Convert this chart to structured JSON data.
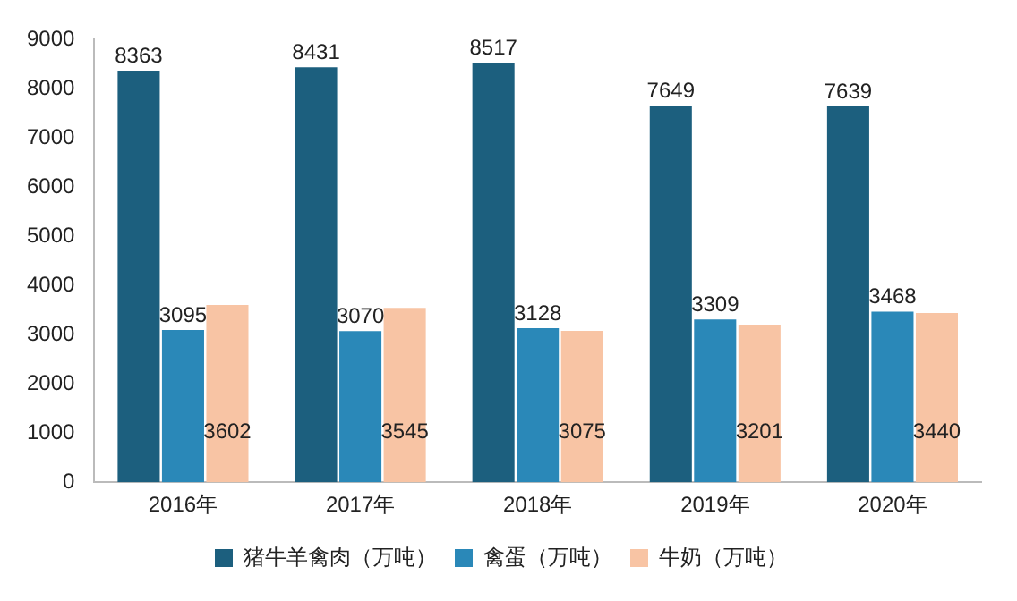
{
  "chart_data": {
    "type": "bar",
    "categories": [
      "2016年",
      "2017年",
      "2018年",
      "2019年",
      "2020年"
    ],
    "series": [
      {
        "name": "猪牛羊禽肉（万吨）",
        "color": "#1c5f7e",
        "values": [
          8363,
          8431,
          8517,
          7649,
          7639
        ]
      },
      {
        "name": "禽蛋（万吨）",
        "color": "#2a88b8",
        "values": [
          3095,
          3070,
          3128,
          3309,
          3468
        ]
      },
      {
        "name": "牛奶（万吨）",
        "color": "#f8c4a4",
        "values": [
          3602,
          3545,
          3075,
          3201,
          3440
        ]
      }
    ],
    "ylim": [
      0,
      9000
    ],
    "yticks": [
      0,
      1000,
      2000,
      3000,
      4000,
      5000,
      6000,
      7000,
      8000,
      9000
    ],
    "grid": false,
    "legend": "bottom",
    "data_labels": true
  }
}
